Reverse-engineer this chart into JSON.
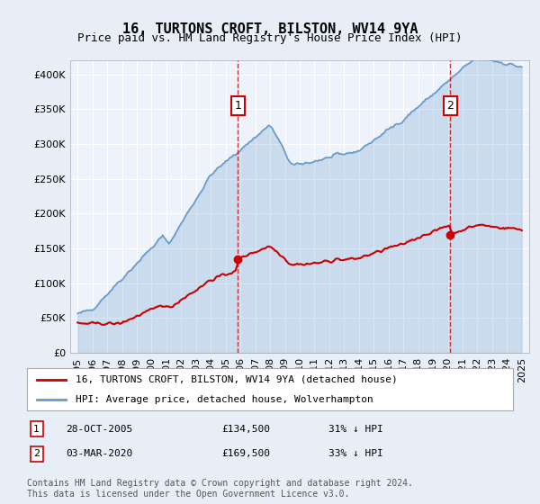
{
  "title": "16, TURTONS CROFT, BILSTON, WV14 9YA",
  "subtitle": "Price paid vs. HM Land Registry's House Price Index (HPI)",
  "legend_label_red": "16, TURTONS CROFT, BILSTON, WV14 9YA (detached house)",
  "legend_label_blue": "HPI: Average price, detached house, Wolverhampton",
  "transaction1_label": "1",
  "transaction1_date": "28-OCT-2005",
  "transaction1_price": "£134,500",
  "transaction1_hpi": "31% ↓ HPI",
  "transaction2_label": "2",
  "transaction2_date": "03-MAR-2020",
  "transaction2_price": "£169,500",
  "transaction2_hpi": "33% ↓ HPI",
  "footer": "Contains HM Land Registry data © Crown copyright and database right 2024.\nThis data is licensed under the Open Government Licence v3.0.",
  "bg_color": "#e8eef8",
  "plot_bg_color": "#eef2fa",
  "red_color": "#cc0000",
  "blue_color": "#6699cc",
  "marker1_x_year": 2005.83,
  "marker2_x_year": 2020.17,
  "ylim_min": 0,
  "ylim_max": 420000,
  "xlim_min": 1994.5,
  "xlim_max": 2025.5
}
